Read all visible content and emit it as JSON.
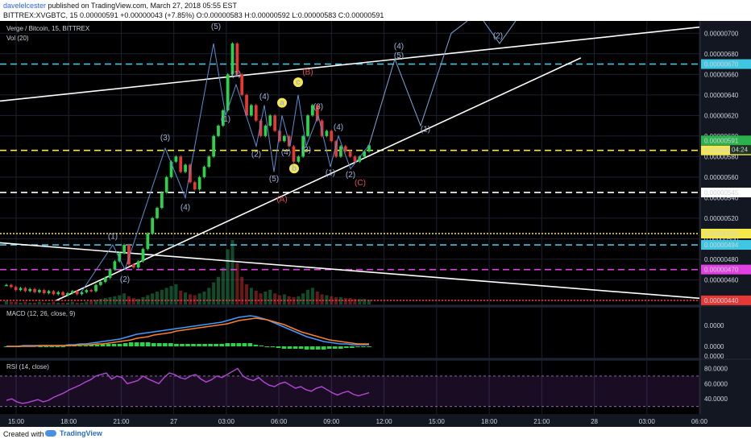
{
  "header": {
    "author": "davelelcester",
    "published": "published on TradingView.com, March 27, 2018 05:55 EST",
    "ohlc": "BITTREX:XVGBTC, 15  0.00000591  +0.00000043 (+7.85%)  O:0.00000583  H:0.00000592  L:0.00000583  C:0.00000591"
  },
  "footer": {
    "created_with": "Created with",
    "brand": "TradingView"
  },
  "chart_data": {
    "type": "candlestick",
    "title": "Verge / Bitcoin, 15, BITTREX",
    "volume_label": "Vol (20)",
    "price_axis_ticks": [
      "0.00000700",
      "0.00000680",
      "0.00000660",
      "0.00000640",
      "0.00000620",
      "0.00000600",
      "0.00000580",
      "0.00000560",
      "0.00000540",
      "0.00000520",
      "0.00000500",
      "0.00000480",
      "0.00000460",
      "0.00000440"
    ],
    "ylim": [
      4.36e-06,
      7.12e-06
    ],
    "x_tick_labels": [
      "15:00",
      "18:00",
      "21:00",
      "27",
      "03:00",
      "06:00",
      "09:00",
      "12:00",
      "15:00",
      "18:00",
      "21:00",
      "28",
      "03:00",
      "06:00"
    ],
    "horizontal_levels": [
      {
        "price": 6.7e-06,
        "label": "0.00000670",
        "color": "#3fc6e0",
        "style": "dashed"
      },
      {
        "price": 5.86e-06,
        "label": "0.00000586",
        "color": "#f5e84a",
        "style": "dashed"
      },
      {
        "price": 5.45e-06,
        "label": "0.00000545",
        "color": "#ffffff",
        "style": "dashed"
      },
      {
        "price": 5.05e-06,
        "label": "0.00000505",
        "color": "#f5e84a",
        "style": "dotted"
      },
      {
        "price": 4.94e-06,
        "label": "0.00000494",
        "color": "#3fc6e0",
        "style": "dashed"
      },
      {
        "price": 4.7e-06,
        "label": "0.00000470",
        "color": "#e040e0",
        "style": "dashed"
      },
      {
        "price": 4.4e-06,
        "label": "0.00000440",
        "color": "#e53935",
        "style": "dotted"
      }
    ],
    "current_price": {
      "label": "0.00000591",
      "color": "#2bb24c"
    },
    "countdown_label": "04:24",
    "candles_close": [
      4.55e-06,
      4.53e-06,
      4.5e-06,
      4.52e-06,
      4.49e-06,
      4.51e-06,
      4.48e-06,
      4.5e-06,
      4.47e-06,
      4.49e-06,
      4.46e-06,
      4.48e-06,
      4.45e-06,
      4.47e-06,
      4.49e-06,
      4.46e-06,
      4.48e-06,
      4.5e-06,
      4.49e-06,
      4.55e-06,
      4.58e-06,
      4.62e-06,
      4.7e-06,
      4.78e-06,
      4.86e-06,
      4.94e-06,
      4.75e-06,
      4.72e-06,
      4.78e-06,
      4.9e-06,
      5.05e-06,
      5.2e-06,
      5.3e-06,
      5.45e-06,
      5.6e-06,
      5.75e-06,
      5.8e-06,
      5.65e-06,
      5.72e-06,
      5.55e-06,
      5.48e-06,
      5.6e-06,
      5.7e-06,
      5.8e-06,
      6e-06,
      6.1e-06,
      6.25e-06,
      6.6e-06,
      6.9e-06,
      6.6e-06,
      6.4e-06,
      6.2e-06,
      6.3e-06,
      6.15e-06,
      6e-06,
      6.1e-06,
      6.2e-06,
      6.05e-06,
      5.95e-06,
      6e-06,
      5.9e-06,
      5.75e-06,
      5.8e-06,
      6e-06,
      6.2e-06,
      6.3e-06,
      6.15e-06,
      6e-06,
      6.05e-06,
      5.95e-06,
      5.8e-06,
      5.9e-06,
      5.85e-06,
      5.8e-06,
      5.75e-06,
      5.8e-06,
      5.85e-06,
      5.91e-06
    ],
    "volume_values": [
      4,
      3,
      3,
      2,
      3,
      2,
      2,
      3,
      2,
      2,
      3,
      2,
      2,
      2,
      3,
      2,
      2,
      3,
      4,
      5,
      6,
      7,
      8,
      9,
      10,
      12,
      9,
      7,
      6,
      8,
      10,
      12,
      14,
      16,
      18,
      20,
      22,
      15,
      13,
      11,
      10,
      12,
      14,
      18,
      24,
      30,
      40,
      60,
      70,
      45,
      30,
      22,
      18,
      15,
      12,
      14,
      16,
      12,
      10,
      11,
      9,
      8,
      9,
      12,
      16,
      18,
      14,
      11,
      10,
      9,
      8,
      8,
      7,
      7,
      6,
      6,
      6,
      5
    ],
    "trend_lines": [
      {
        "name": "upper-resistance",
        "points": [
          [
            0,
            6.34e-06
          ],
          [
            867,
            7.06e-06
          ]
        ]
      },
      {
        "name": "rising-support",
        "points": [
          [
            70,
            4.4e-06
          ],
          [
            720,
            6.76e-06
          ]
        ]
      },
      {
        "name": "falling-line",
        "points": [
          [
            0,
            4.96e-06
          ],
          [
            867,
            4.42e-06
          ]
        ]
      }
    ],
    "wave_labels": {
      "white": [
        "(5)",
        "(2)",
        "(1)",
        "(4)",
        "(3)",
        "(1)",
        "(4)",
        "(1)",
        "(2)",
        "(3)",
        "(4)",
        "(5)",
        "(3)",
        "(5)",
        "(1)",
        "(2)",
        "(4)",
        "(1)",
        "(2)",
        "(4)"
      ],
      "yellow": [
        "a",
        "b",
        "c"
      ],
      "red": [
        "(B)",
        "(A)",
        "(C)"
      ]
    },
    "macd": {
      "label": "MACD (12, 26, close, 9)",
      "axis_ticks": [
        "0.0000",
        "0.0000",
        "0.0000"
      ],
      "macd_line": [
        0,
        0,
        0,
        1,
        1,
        1,
        1,
        1,
        1,
        1,
        1,
        2,
        2,
        3,
        3,
        4,
        5,
        6,
        7,
        8,
        9,
        11,
        13,
        15,
        16,
        17,
        18,
        19,
        20,
        21,
        22,
        23,
        24,
        25,
        26,
        27,
        28,
        29,
        30,
        32,
        34,
        36,
        37,
        38,
        37,
        35,
        33,
        30,
        27,
        24,
        21,
        18,
        15,
        12,
        10,
        8,
        6,
        5,
        4,
        3,
        3,
        2,
        2,
        2,
        2
      ],
      "signal_line": [
        0,
        0,
        0,
        0,
        0,
        0,
        1,
        1,
        1,
        1,
        1,
        1,
        1,
        2,
        2,
        2,
        3,
        3,
        4,
        5,
        6,
        7,
        8,
        10,
        11,
        12,
        14,
        15,
        16,
        17,
        19,
        20,
        21,
        22,
        23,
        24,
        25,
        26,
        27,
        28,
        30,
        32,
        33,
        34,
        35,
        34,
        33,
        31,
        29,
        27,
        24,
        21,
        18,
        16,
        14,
        12,
        10,
        8,
        7,
        6,
        5,
        4,
        3,
        3,
        3
      ],
      "histogram": [
        0,
        0,
        0,
        1,
        1,
        1,
        0,
        0,
        0,
        0,
        0,
        1,
        1,
        1,
        1,
        2,
        2,
        3,
        3,
        3,
        3,
        4,
        5,
        5,
        5,
        5,
        4,
        4,
        4,
        4,
        3,
        3,
        3,
        3,
        3,
        3,
        3,
        3,
        3,
        4,
        4,
        4,
        4,
        4,
        2,
        1,
        0,
        -1,
        -2,
        -3,
        -3,
        -3,
        -3,
        -4,
        -4,
        -4,
        -4,
        -3,
        -3,
        -3,
        -2,
        -2,
        -1,
        -1,
        -1
      ]
    },
    "rsi": {
      "label": "RSI (14, close)",
      "axis_ticks": [
        "80.0000",
        "60.0000",
        "40.0000"
      ],
      "ylim": [
        20,
        90
      ],
      "values": [
        38,
        40,
        36,
        34,
        35,
        37,
        39,
        36,
        38,
        42,
        45,
        48,
        52,
        55,
        58,
        62,
        65,
        70,
        72,
        74,
        66,
        70,
        68,
        60,
        62,
        64,
        70,
        66,
        63,
        60,
        68,
        74,
        72,
        68,
        66,
        70,
        72,
        66,
        62,
        65,
        70,
        68,
        72,
        76,
        80,
        70,
        66,
        64,
        68,
        62,
        58,
        56,
        60,
        62,
        58,
        54,
        56,
        52,
        50,
        54,
        56,
        52,
        48,
        45,
        48,
        50,
        46,
        44,
        46,
        48
      ]
    }
  }
}
